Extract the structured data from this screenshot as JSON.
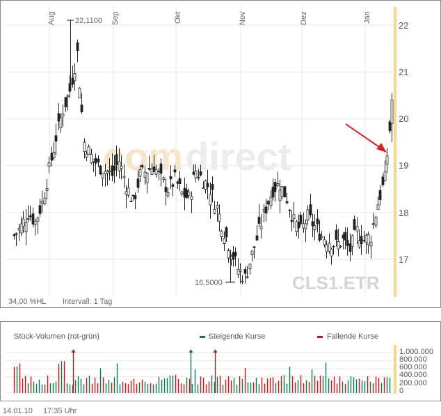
{
  "chart_data": {
    "type": "candlestick",
    "symbol": "CLS1.ETR",
    "watermark_part1": "com",
    "watermark_part2": "direct",
    "x_labels": [
      "Aug",
      "Sep",
      "Okt",
      "Nov",
      "Dez",
      "Jan"
    ],
    "y_ticks": [
      "22",
      "21",
      "20",
      "19",
      "18",
      "17"
    ],
    "ylim": [
      16.2,
      22.4
    ],
    "high_label": "22,1100",
    "low_label": "16,5000",
    "high_value": 22.11,
    "low_value": 16.5,
    "hl_percent": "34,00 %HL",
    "interval": "Intervall: 1 Tag",
    "annotation": "red arrow pointing to the latest price gap",
    "closes_approx": [
      17.5,
      17.7,
      18.0,
      17.8,
      18.2,
      18.9,
      19.6,
      20.2,
      20.6,
      21.4,
      19.5,
      19.2,
      19.0,
      18.9,
      18.8,
      19.1,
      18.6,
      18.2,
      18.8,
      18.9,
      19.0,
      18.7,
      18.5,
      18.7,
      18.4,
      18.3,
      18.9,
      18.7,
      18.5,
      18.1,
      17.6,
      17.2,
      16.8,
      16.6,
      17.1,
      17.6,
      18.1,
      18.5,
      18.6,
      18.3,
      17.8,
      17.6,
      17.9,
      17.7,
      17.5,
      17.4,
      17.3,
      17.4,
      17.2,
      17.6,
      17.4,
      17.5,
      18.2,
      18.7,
      20.3
    ]
  },
  "volume": {
    "title": "Stück-Volumen (rot-grün)",
    "legend_up": "Steigende Kurse",
    "legend_down": "Fallende Kurse",
    "y_ticks": [
      "1.000.000",
      "800.000",
      "600.000",
      "400.000",
      "200.000",
      "0"
    ],
    "ylim": [
      0,
      1000000
    ],
    "up_color": "#1b6e50",
    "down_color": "#b02020"
  },
  "footer": {
    "date": "14.01.10",
    "time": "17:35 Uhr"
  },
  "colors": {
    "axis_highlight": "#f5d98a",
    "candle": "#222222",
    "arrow": "#e02020",
    "grid": "#e6e6e6"
  }
}
